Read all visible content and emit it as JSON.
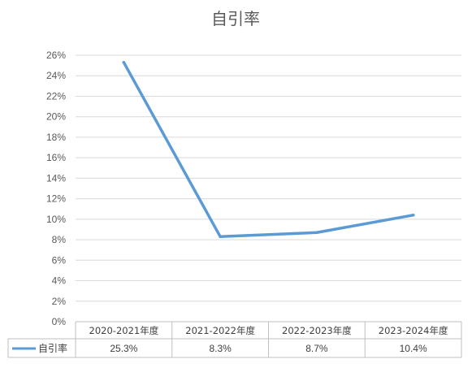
{
  "chart_data": {
    "type": "line",
    "title": "自引率",
    "categories": [
      "2020-2021年度",
      "2021-2022年度",
      "2022-2023年度",
      "2023-2024年度"
    ],
    "series": [
      {
        "name": "自引率",
        "values": [
          25.3,
          8.3,
          8.7,
          10.4
        ],
        "labels": [
          "25.3%",
          "8.3%",
          "8.7%",
          "10.4%"
        ],
        "color": "#5b9bd5"
      }
    ],
    "ylim": [
      0,
      26
    ],
    "yticks": [
      "0%",
      "2%",
      "4%",
      "6%",
      "8%",
      "10%",
      "12%",
      "14%",
      "16%",
      "18%",
      "20%",
      "22%",
      "24%",
      "26%"
    ],
    "grid": true,
    "legend": "bottom-left data table",
    "data_table": true
  }
}
